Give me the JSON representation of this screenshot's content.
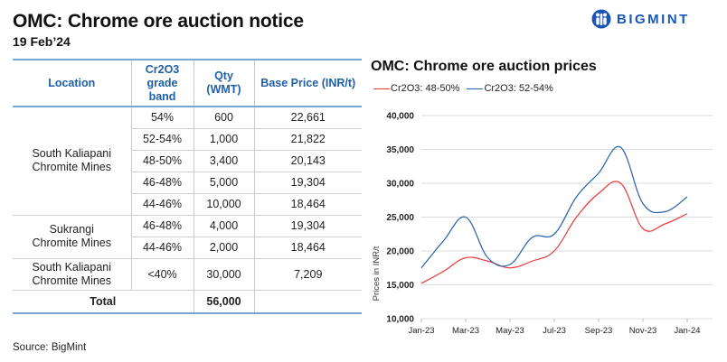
{
  "header": {
    "title": "OMC: Chrome ore auction notice",
    "date": "19 Feb’24",
    "brand": "BIGMINT"
  },
  "table": {
    "columns": [
      "Location",
      "Cr2O3 grade band",
      "Qty (WMT)",
      "Base Price (INR/t)"
    ],
    "column_lines": [
      [
        "Location"
      ],
      [
        "Cr2O3",
        "grade",
        "band"
      ],
      [
        "Qty",
        "(WMT)"
      ],
      [
        "Base Price (INR/t)"
      ]
    ],
    "groups": [
      {
        "location": "South Kaliapani Chromite Mines",
        "rows": [
          {
            "grade": "54%",
            "qty": "600",
            "price": "22,661"
          },
          {
            "grade": "52-54%",
            "qty": "1,000",
            "price": "21,822"
          },
          {
            "grade": "48-50%",
            "qty": "3,400",
            "price": "20,143"
          },
          {
            "grade": "46-48%",
            "qty": "5,000",
            "price": "19,304"
          },
          {
            "grade": "44-46%",
            "qty": "10,000",
            "price": "18,464"
          }
        ]
      },
      {
        "location": "Sukrangi Chromite Mines",
        "rows": [
          {
            "grade": "46-48%",
            "qty": "4,000",
            "price": "19,304"
          },
          {
            "grade": "44-46%",
            "qty": "2,000",
            "price": "18,464"
          }
        ]
      },
      {
        "location": "South Kaliapani Chromite Mines",
        "rows": [
          {
            "grade": "<40%",
            "qty": "30,000",
            "price": "7,209"
          }
        ]
      }
    ],
    "total_label": "Total",
    "total_qty": "56,000"
  },
  "source": "Source: BigMint",
  "chart_data": {
    "type": "line",
    "title": "OMC: Chrome ore auction prices",
    "xlabel": "",
    "ylabel": "Prices in INR/t",
    "x": [
      "Jan-23",
      "Feb-23",
      "Mar-23",
      "Apr-23",
      "May-23",
      "Jun-23",
      "Jul-23",
      "Aug-23",
      "Sep-23",
      "Oct-23",
      "Nov-23",
      "Dec-23",
      "Jan-24"
    ],
    "x_tick_labels": [
      "Jan-23",
      "Mar-23",
      "May-23",
      "Jul-23",
      "Sep-23",
      "Nov-23",
      "Jan-24"
    ],
    "y_tick_labels": [
      "10,000",
      "15,000",
      "20,000",
      "25,000",
      "30,000",
      "35,000",
      "40,000"
    ],
    "y_ticks": [
      10000,
      15000,
      20000,
      25000,
      30000,
      35000,
      40000
    ],
    "ylim": [
      10000,
      40000
    ],
    "grid": true,
    "legend_position": "top-left",
    "series": [
      {
        "name": "Cr2O3: 48-50%",
        "color": "#e8393c",
        "values": [
          15200,
          17000,
          19000,
          18500,
          17500,
          18500,
          20000,
          25000,
          28500,
          30000,
          23300,
          24000,
          25500
        ]
      },
      {
        "name": "Cr2O3: 52-54%",
        "color": "#2460a8",
        "values": [
          17500,
          21500,
          25000,
          19000,
          18000,
          22000,
          22500,
          28000,
          31500,
          35300,
          27000,
          25800,
          28000
        ]
      }
    ]
  }
}
